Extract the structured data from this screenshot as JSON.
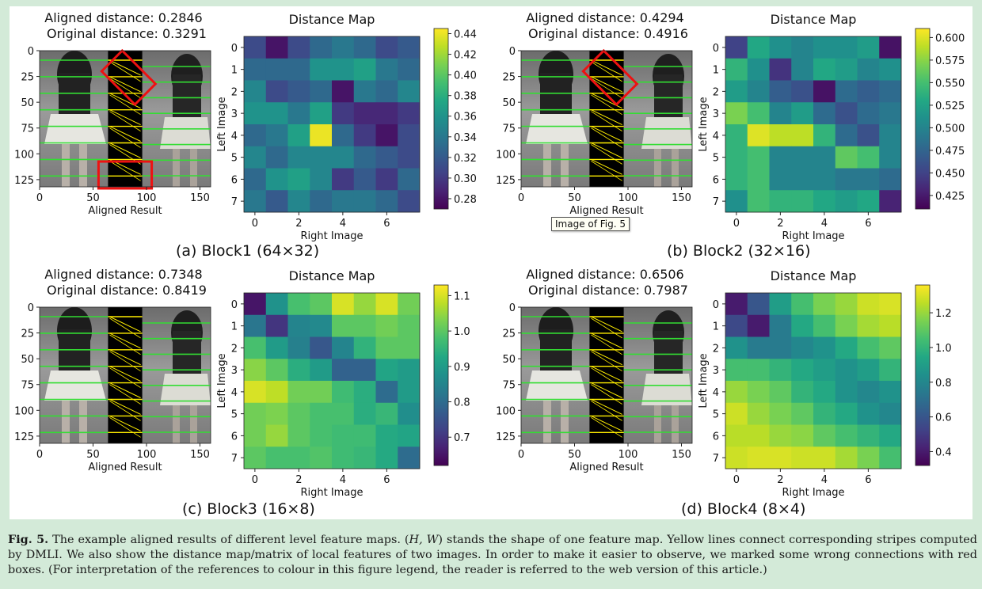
{
  "panels": [
    {
      "id": "a",
      "aligned_label": "Aligned distance: 0.2846",
      "original_label": "Original distance: 0.3291",
      "subcaption": "(a) Block1 (64×32)",
      "map_title": "Distance Map",
      "left_xlabel": "Aligned Result",
      "map_xlabel": "Right Image",
      "map_ylabel": "Left Image",
      "left_xticks": [
        "0",
        "50",
        "100",
        "150"
      ],
      "left_yticks": [
        "0",
        "25",
        "50",
        "75",
        "100",
        "125"
      ],
      "map_ticks": [
        "0",
        "1",
        "2",
        "3",
        "4",
        "5",
        "6",
        "7"
      ],
      "map_xticks": [
        "0",
        "2",
        "4",
        "6"
      ],
      "cbar_ticks": [
        "0.44",
        "0.42",
        "0.40",
        "0.38",
        "0.36",
        "0.34",
        "0.32",
        "0.30",
        "0.28"
      ],
      "cbar_range": [
        0.27,
        0.445
      ],
      "cbar_values": [
        0.44,
        0.42,
        0.4,
        0.38,
        0.36,
        0.34,
        0.32,
        0.3,
        0.28
      ],
      "matrix": [
        [
          0.31,
          0.28,
          0.31,
          0.33,
          0.34,
          0.33,
          0.31,
          0.32
        ],
        [
          0.33,
          0.33,
          0.33,
          0.36,
          0.36,
          0.37,
          0.34,
          0.33
        ],
        [
          0.35,
          0.31,
          0.32,
          0.33,
          0.28,
          0.34,
          0.33,
          0.35
        ],
        [
          0.36,
          0.36,
          0.34,
          0.37,
          0.3,
          0.29,
          0.29,
          0.3
        ],
        [
          0.33,
          0.34,
          0.37,
          0.44,
          0.33,
          0.3,
          0.28,
          0.31
        ],
        [
          0.35,
          0.33,
          0.35,
          0.35,
          0.35,
          0.33,
          0.32,
          0.31
        ],
        [
          0.33,
          0.36,
          0.37,
          0.35,
          0.3,
          0.32,
          0.3,
          0.33
        ],
        [
          0.34,
          0.32,
          0.35,
          0.33,
          0.34,
          0.34,
          0.33,
          0.31
        ]
      ],
      "red_boxes": [
        {
          "type": "diamond"
        },
        {
          "type": "rect"
        }
      ]
    },
    {
      "id": "b",
      "aligned_label": "Aligned distance: 0.4294",
      "original_label": "Original distance: 0.4916",
      "subcaption": "(b) Block2 (32×16)",
      "map_title": "Distance Map",
      "left_xlabel": "Aligned Result",
      "map_xlabel": "Right Image",
      "map_ylabel": "Left Image",
      "left_xticks": [
        "0",
        "50",
        "100",
        "150"
      ],
      "left_yticks": [
        "0",
        "25",
        "50",
        "75",
        "100",
        "125"
      ],
      "map_ticks": [
        "0",
        "1",
        "2",
        "3",
        "4",
        "5",
        "6",
        "7"
      ],
      "map_xticks": [
        "0",
        "2",
        "4",
        "6"
      ],
      "cbar_ticks": [
        "0.600",
        "0.575",
        "0.550",
        "0.525",
        "0.500",
        "0.475",
        "0.450",
        "0.425"
      ],
      "cbar_range": [
        0.41,
        0.61
      ],
      "cbar_values": [
        0.6,
        0.575,
        0.55,
        0.525,
        0.5,
        0.475,
        0.45,
        0.425
      ],
      "matrix": [
        [
          0.45,
          0.53,
          0.51,
          0.5,
          0.51,
          0.51,
          0.52,
          0.42
        ],
        [
          0.54,
          0.51,
          0.44,
          0.5,
          0.53,
          0.52,
          0.5,
          0.51
        ],
        [
          0.52,
          0.5,
          0.47,
          0.46,
          0.42,
          0.48,
          0.47,
          0.48
        ],
        [
          0.57,
          0.55,
          0.5,
          0.52,
          0.48,
          0.46,
          0.48,
          0.49
        ],
        [
          0.54,
          0.6,
          0.59,
          0.59,
          0.54,
          0.48,
          0.46,
          0.5
        ],
        [
          0.54,
          0.55,
          0.5,
          0.5,
          0.5,
          0.56,
          0.55,
          0.5
        ],
        [
          0.54,
          0.55,
          0.5,
          0.5,
          0.5,
          0.49,
          0.49,
          0.48
        ],
        [
          0.51,
          0.55,
          0.54,
          0.54,
          0.53,
          0.52,
          0.53,
          0.43
        ]
      ],
      "red_boxes": [
        {
          "type": "diamond"
        }
      ]
    },
    {
      "id": "c",
      "aligned_label": "Aligned distance: 0.7348",
      "original_label": "Original distance: 0.8419",
      "subcaption": "(c) Block3 (16×8)",
      "map_title": "Distance Map",
      "left_xlabel": "Aligned Result",
      "map_xlabel": "Right Image",
      "map_ylabel": "Left Image",
      "left_xticks": [
        "0",
        "50",
        "100",
        "150"
      ],
      "left_yticks": [
        "0",
        "25",
        "50",
        "75",
        "100",
        "125"
      ],
      "map_ticks": [
        "0",
        "1",
        "2",
        "3",
        "4",
        "5",
        "6",
        "7"
      ],
      "map_xticks": [
        "0",
        "2",
        "4",
        "6"
      ],
      "cbar_ticks": [
        "1.1",
        "1.0",
        "0.9",
        "0.8",
        "0.7"
      ],
      "cbar_range": [
        0.62,
        1.13
      ],
      "cbar_values": [
        1.1,
        1.0,
        0.9,
        0.8,
        0.7
      ],
      "matrix": [
        [
          0.65,
          0.88,
          0.98,
          1.0,
          1.1,
          1.05,
          1.1,
          1.02
        ],
        [
          0.82,
          0.7,
          0.85,
          0.86,
          1.0,
          1.0,
          1.02,
          1.0
        ],
        [
          0.98,
          0.9,
          0.84,
          0.76,
          0.85,
          0.95,
          1.0,
          1.0
        ],
        [
          1.04,
          1.0,
          0.94,
          0.9,
          0.78,
          0.78,
          0.92,
          0.9
        ],
        [
          1.1,
          1.08,
          1.02,
          1.02,
          0.97,
          0.94,
          0.8,
          0.9
        ],
        [
          1.02,
          1.03,
          1.0,
          0.98,
          0.98,
          0.94,
          0.96,
          0.87
        ],
        [
          1.02,
          1.05,
          1.0,
          0.98,
          0.97,
          0.97,
          0.93,
          0.92
        ],
        [
          1.0,
          0.98,
          0.98,
          0.99,
          0.97,
          0.96,
          0.93,
          0.8
        ]
      ],
      "red_boxes": []
    },
    {
      "id": "d",
      "aligned_label": "Aligned distance: 0.6506",
      "original_label": "Original distance: 0.7987",
      "subcaption": "(d) Block4 (8×4)",
      "map_title": "Distance Map",
      "left_xlabel": "Aligned Result",
      "map_xlabel": "Right Image",
      "map_ylabel": "Left Image",
      "left_xticks": [
        "0",
        "50",
        "100",
        "150"
      ],
      "left_yticks": [
        "0",
        "25",
        "50",
        "75",
        "100",
        "125"
      ],
      "map_ticks": [
        "0",
        "1",
        "2",
        "3",
        "4",
        "5",
        "6",
        "7"
      ],
      "map_xticks": [
        "0",
        "2",
        "4",
        "6"
      ],
      "cbar_ticks": [
        "1.2",
        "1.0",
        "0.8",
        "0.6",
        "0.4"
      ],
      "cbar_range": [
        0.32,
        1.36
      ],
      "cbar_values": [
        1.2,
        1.0,
        0.8,
        0.6,
        0.4
      ],
      "matrix": [
        [
          0.4,
          0.6,
          0.9,
          1.05,
          1.15,
          1.2,
          1.28,
          1.3
        ],
        [
          0.55,
          0.4,
          0.75,
          0.95,
          1.05,
          1.15,
          1.22,
          1.25
        ],
        [
          0.85,
          0.75,
          0.75,
          0.8,
          0.85,
          0.95,
          1.05,
          1.1
        ],
        [
          1.05,
          1.05,
          1.0,
          0.95,
          0.9,
          0.85,
          0.9,
          1.0
        ],
        [
          1.2,
          1.15,
          1.1,
          1.0,
          0.95,
          0.85,
          0.8,
          0.85
        ],
        [
          1.28,
          1.2,
          1.15,
          1.1,
          1.0,
          0.95,
          0.85,
          0.8
        ],
        [
          1.25,
          1.25,
          1.2,
          1.18,
          1.1,
          1.05,
          1.0,
          0.95
        ],
        [
          1.28,
          1.3,
          1.3,
          1.28,
          1.28,
          1.22,
          1.15,
          1.05
        ]
      ],
      "red_boxes": []
    }
  ],
  "tooltip": "Image of Fig. 5",
  "caption": {
    "label": "Fig. 5.",
    "text_1": " The example aligned results of different level feature maps. (",
    "hw": "H, W",
    "text_2": ") stands the shape of one feature map. Yellow lines connect corresponding stripes computed by DMLI. We also show the distance map/matrix of local features of two images. In order to make it easier to observe, we marked some wrong connections with red boxes. (For interpretation of the references to colour in this figure legend, the reader is referred to the web version of this article.)"
  },
  "colors": {
    "green_line": "#33dd33",
    "yellow_line": "#ffee00",
    "red_box": "#ee1111",
    "background": "#d3ead8"
  }
}
